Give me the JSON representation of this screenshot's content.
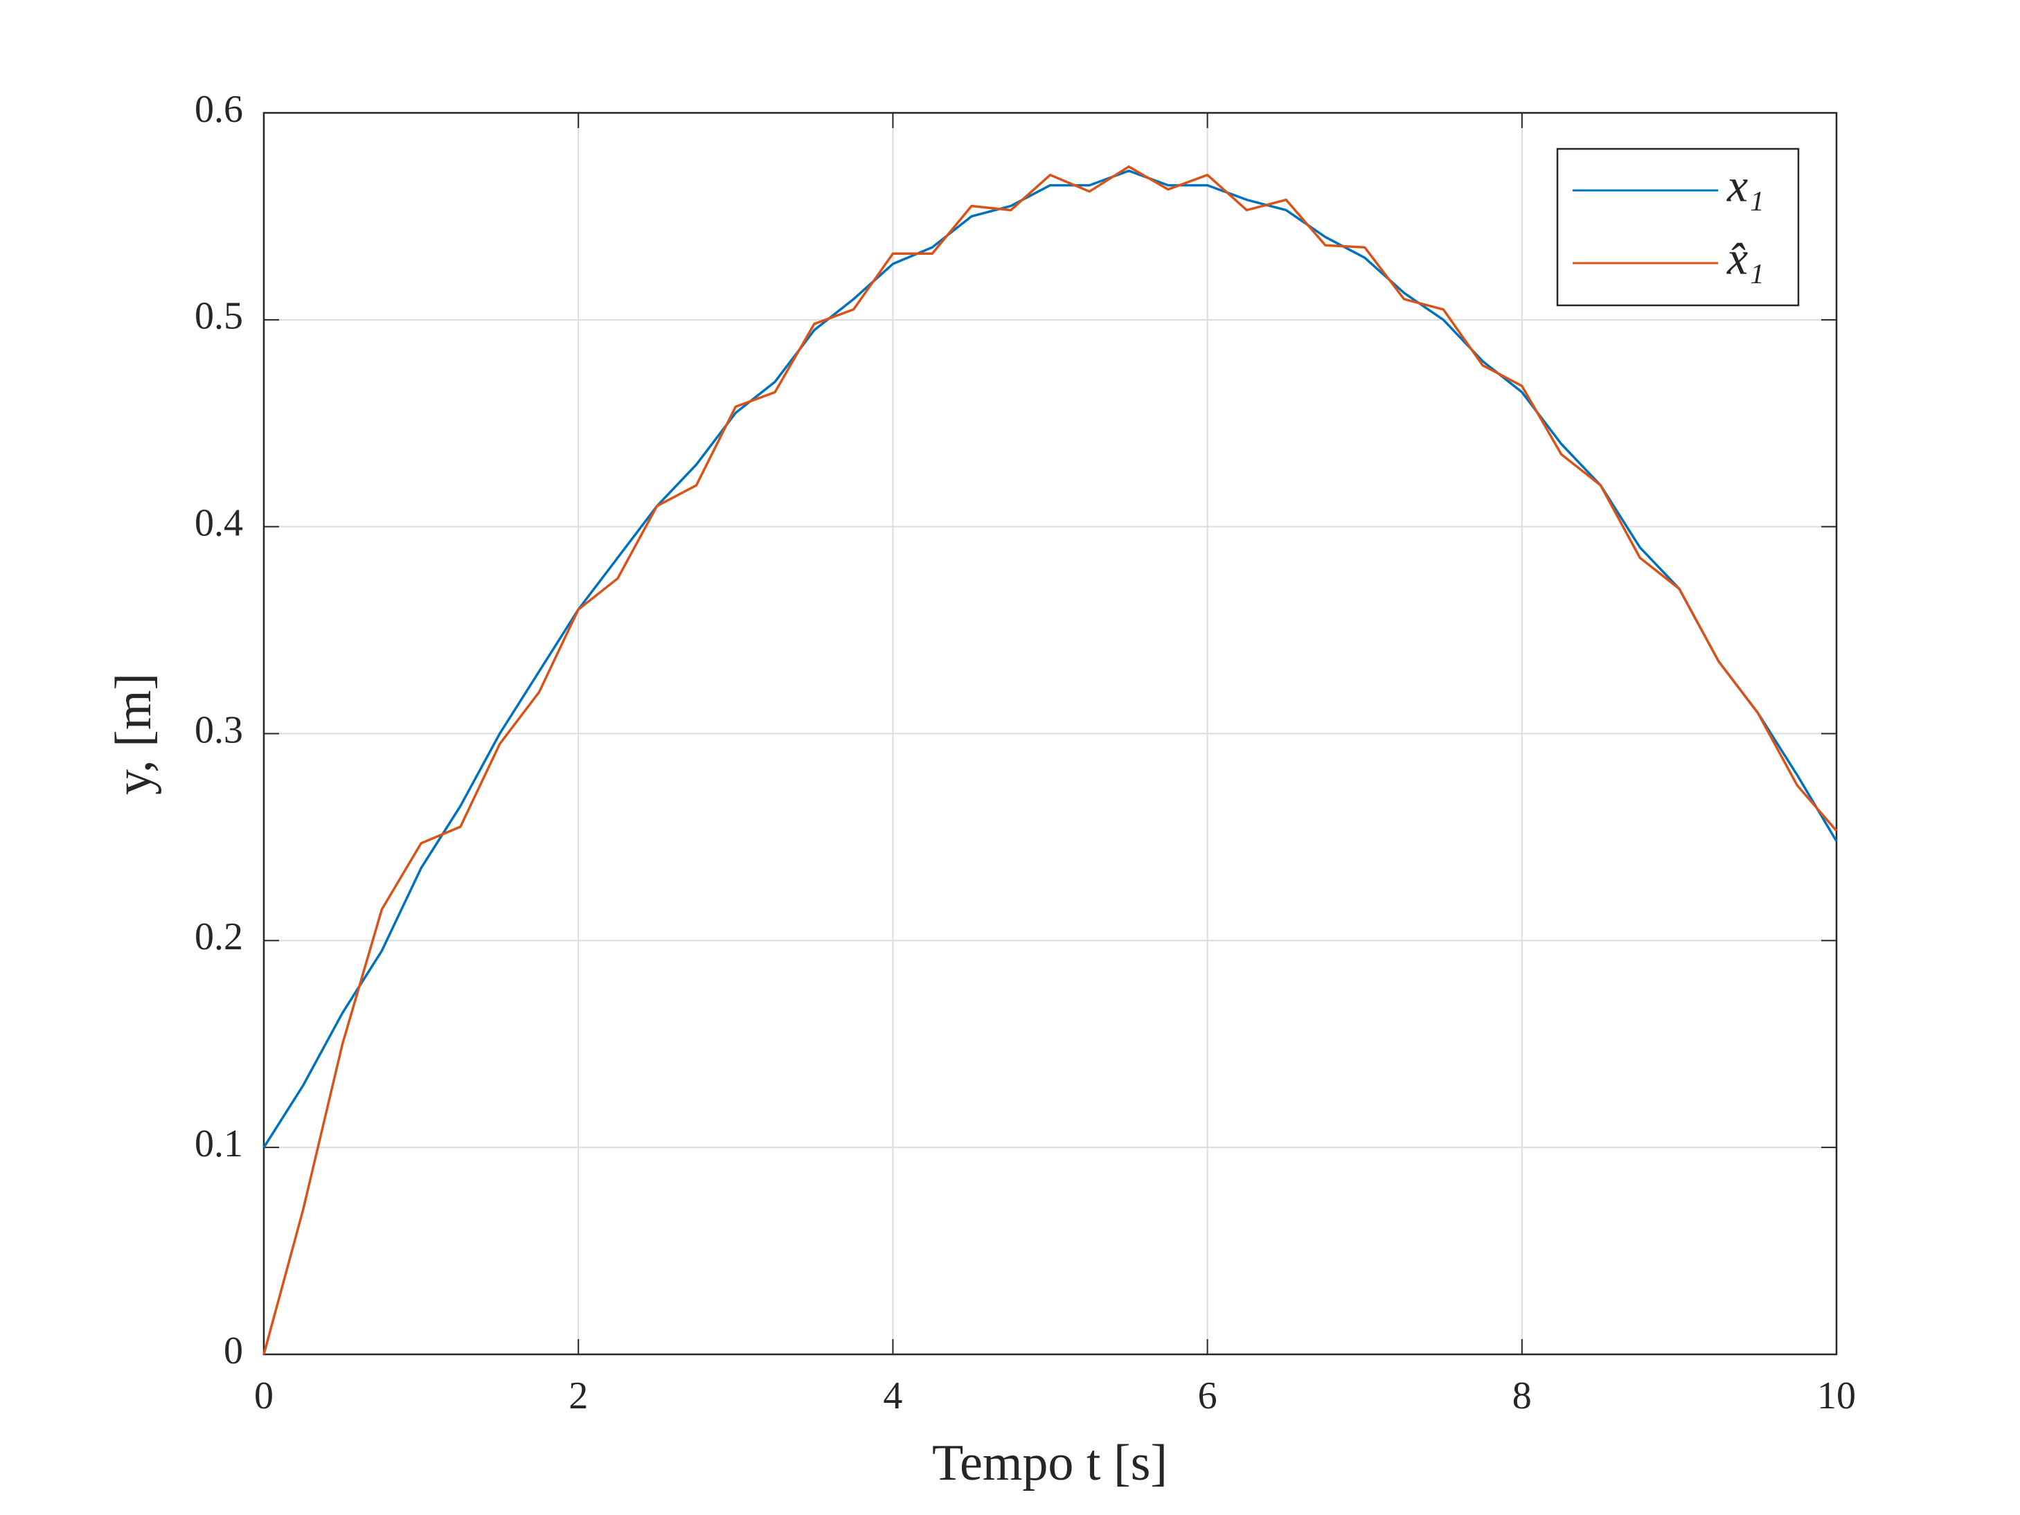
{
  "chart_data": {
    "type": "line",
    "xlabel": "Tempo t [s]",
    "ylabel": "y, [m]",
    "x": [
      0,
      0.25,
      0.5,
      0.75,
      1,
      1.25,
      1.5,
      1.75,
      2,
      2.25,
      2.5,
      2.75,
      3,
      3.25,
      3.5,
      3.75,
      4,
      4.25,
      4.5,
      4.75,
      5,
      5.25,
      5.5,
      5.75,
      6,
      6.25,
      6.5,
      6.75,
      7,
      7.25,
      7.5,
      7.75,
      8,
      8.25,
      8.5,
      8.75,
      9,
      9.25,
      9.5,
      9.75,
      10
    ],
    "series": [
      {
        "name": "x₁",
        "color": "#0072bd",
        "values": [
          0.1,
          0.13,
          0.165,
          0.195,
          0.235,
          0.265,
          0.3,
          0.33,
          0.36,
          0.385,
          0.41,
          0.43,
          0.455,
          0.47,
          0.495,
          0.51,
          0.527,
          0.535,
          0.55,
          0.555,
          0.565,
          0.565,
          0.572,
          0.565,
          0.565,
          0.558,
          0.553,
          0.54,
          0.53,
          0.513,
          0.5,
          0.48,
          0.465,
          0.44,
          0.42,
          0.39,
          0.37,
          0.335,
          0.31,
          0.28,
          0.248
        ]
      },
      {
        "name": "x̂₁",
        "color": "#d95319",
        "values": [
          0,
          0.07,
          0.15,
          0.215,
          0.247,
          0.255,
          0.295,
          0.32,
          0.36,
          0.375,
          0.41,
          0.42,
          0.458,
          0.465,
          0.498,
          0.505,
          0.532,
          0.532,
          0.555,
          0.553,
          0.57,
          0.562,
          0.574,
          0.563,
          0.57,
          0.553,
          0.558,
          0.536,
          0.535,
          0.51,
          0.505,
          0.478,
          0.468,
          0.435,
          0.42,
          0.385,
          0.37,
          0.335,
          0.31,
          0.275,
          0.253
        ]
      }
    ],
    "xlim": [
      0,
      10
    ],
    "xticks": [
      0,
      2,
      4,
      6,
      8,
      10
    ],
    "ylim": [
      0,
      0.6
    ],
    "yticks": [
      0,
      0.1,
      0.2,
      0.3,
      0.4,
      0.5,
      0.6
    ],
    "grid": true,
    "legend": "top-right"
  }
}
